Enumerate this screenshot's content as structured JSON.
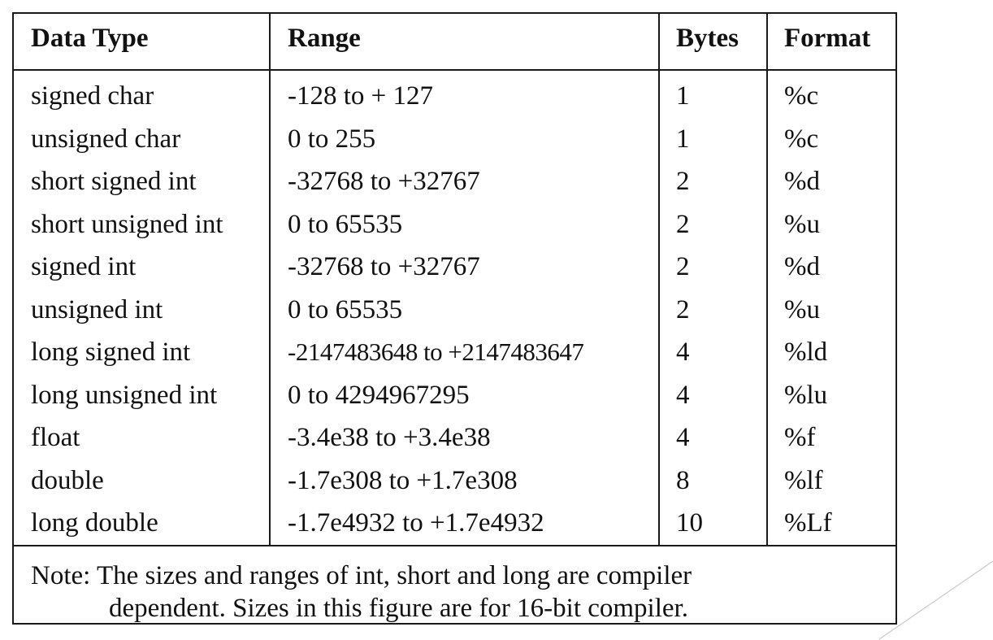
{
  "table": {
    "headers": {
      "data_type": "Data Type",
      "range": "Range",
      "bytes": "Bytes",
      "format": "Format"
    },
    "rows": [
      {
        "data_type": "signed char",
        "range": "-128 to + 127",
        "bytes": "1",
        "format": "%c"
      },
      {
        "data_type": "unsigned char",
        "range": "0 to 255",
        "bytes": "1",
        "format": "%c"
      },
      {
        "data_type": "short signed int",
        "range": "-32768 to +32767",
        "bytes": "2",
        "format": "%d"
      },
      {
        "data_type": "short unsigned int",
        "range": "0 to 65535",
        "bytes": "2",
        "format": "%u"
      },
      {
        "data_type": "signed int",
        "range": "-32768 to +32767",
        "bytes": "2",
        "format": "%d"
      },
      {
        "data_type": "unsigned int",
        "range": "0 to 65535",
        "bytes": "2",
        "format": "%u"
      },
      {
        "data_type": "long signed int",
        "range": "-2147483648 to +2147483647",
        "bytes": "4",
        "format": "%ld"
      },
      {
        "data_type": "long unsigned int",
        "range": "0 to 4294967295",
        "bytes": "4",
        "format": "%lu"
      },
      {
        "data_type": "float",
        "range": "-3.4e38 to +3.4e38",
        "bytes": "4",
        "format": "%f"
      },
      {
        "data_type": "double",
        "range": "-1.7e308 to +1.7e308",
        "bytes": "8",
        "format": "%lf"
      },
      {
        "data_type": "long double",
        "range": "-1.7e4932 to +1.7e4932",
        "bytes": "10",
        "format": "%Lf"
      }
    ],
    "note": {
      "line1": "Note: The sizes and ranges of int, short and long are compiler",
      "line2": "dependent. Sizes in this figure are for 16-bit compiler."
    }
  }
}
